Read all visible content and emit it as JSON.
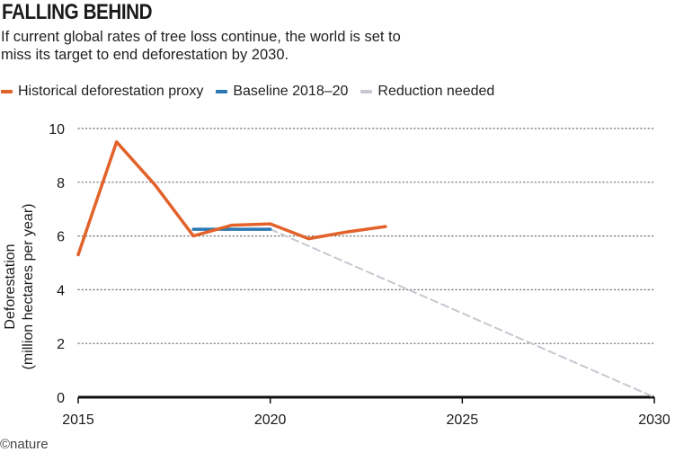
{
  "title": "FALLING BEHIND",
  "subtitle": "If current global rates of tree loss continue, the world is set to miss its target to end deforestation by 2030.",
  "credit": "©nature",
  "colors": {
    "historical": "#e2622a",
    "baseline": "#2a78b4",
    "reduction": "#c6c8d0",
    "axis": "#111111",
    "grid": "#6e6e6e"
  },
  "chart_data": {
    "type": "line",
    "ylabel": "Deforestation\n(million hectares per year)",
    "xlim": [
      2015,
      2030
    ],
    "ylim": [
      0,
      10
    ],
    "xticks": [
      2015,
      2020,
      2025,
      2030
    ],
    "yticks": [
      0,
      2,
      4,
      6,
      8,
      10
    ],
    "grid": "horizontal dotted",
    "legend_position": "top-left",
    "series": [
      {
        "name": "Historical deforestation proxy",
        "style": "solid",
        "color_key": "historical",
        "x": [
          2015,
          2016,
          2017,
          2018,
          2019,
          2020,
          2021,
          2022,
          2023
        ],
        "y": [
          5.3,
          9.5,
          7.9,
          6.0,
          6.4,
          6.45,
          5.9,
          6.15,
          6.35
        ]
      },
      {
        "name": "Baseline 2018–20",
        "style": "solid",
        "color_key": "baseline",
        "x": [
          2018,
          2020
        ],
        "y": [
          6.25,
          6.25
        ]
      },
      {
        "name": "Reduction needed",
        "style": "dashed",
        "color_key": "reduction",
        "x": [
          2020,
          2030
        ],
        "y": [
          6.25,
          0
        ]
      }
    ]
  }
}
